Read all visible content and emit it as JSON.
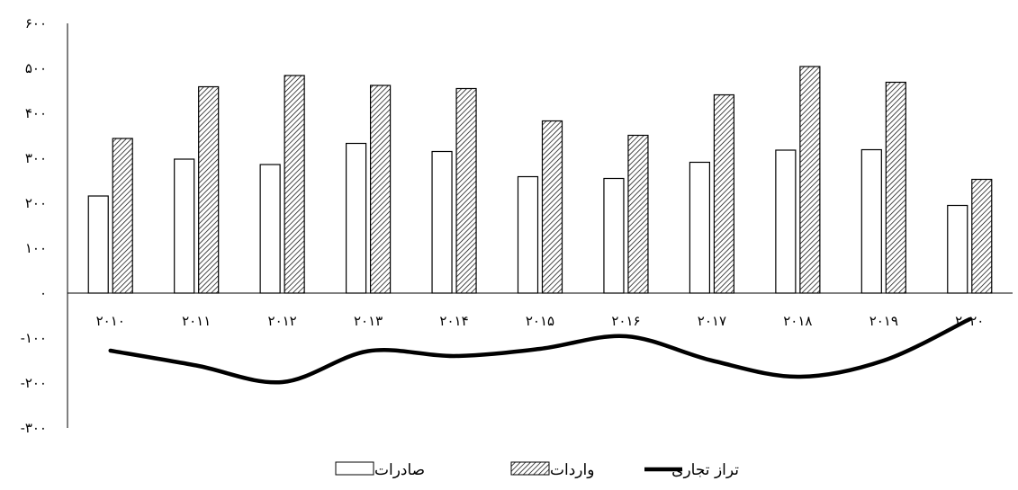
{
  "chart_data": {
    "type": "bar",
    "categories": [
      "۲۰۱۰",
      "۲۰۱۱",
      "۲۰۱۲",
      "۲۰۱۳",
      "۲۰۱۴",
      "۲۰۱۵",
      "۲۰۱۶",
      "۲۰۱۷",
      "۲۰۱۸",
      "۲۰۱۹",
      "۲۰۲۰"
    ],
    "series": [
      {
        "name": "صادرات",
        "kind": "bar",
        "pattern": "none",
        "values": [
          216,
          298,
          286,
          333,
          315,
          259,
          255,
          291,
          318,
          319,
          195
        ]
      },
      {
        "name": "واردات",
        "kind": "bar",
        "pattern": "diagonal-hatch",
        "values": [
          344,
          459,
          484,
          462,
          455,
          383,
          351,
          441,
          504,
          469,
          253
        ]
      },
      {
        "name": "تراز تجاری",
        "kind": "line",
        "pattern": "thick-smooth",
        "values": [
          -128,
          -161,
          -198,
          -129,
          -140,
          -124,
          -96,
          -150,
          -186,
          -150,
          -58
        ]
      }
    ],
    "yticks": [
      "-۳۰۰",
      "-۲۰۰",
      "-۱۰۰",
      "۰",
      "۱۰۰",
      "۲۰۰",
      "۳۰۰",
      "۴۰۰",
      "۵۰۰",
      "۶۰۰"
    ],
    "ytick_values": [
      -300,
      -200,
      -100,
      0,
      100,
      200,
      300,
      400,
      500,
      600
    ],
    "ylim": [
      -300,
      600
    ],
    "title": "",
    "xlabel": "",
    "ylabel": "",
    "grid": false,
    "legend_position": "bottom-center",
    "colors": {
      "bar_fill": "#ffffff",
      "stroke": "#000000",
      "line": "#000000"
    }
  }
}
